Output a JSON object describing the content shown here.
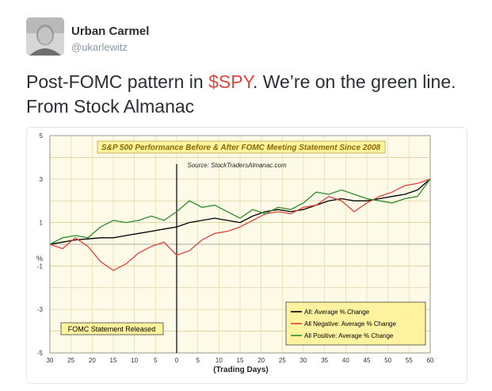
{
  "tweet": {
    "author_name": "Urban Carmel",
    "handle": "@ukarlewitz",
    "text_before": "Post-FOMC pattern in ",
    "cashtag": "$SPY",
    "text_after": ". We’re on the green line. From Stock Almanac"
  },
  "colors": {
    "cashtag": "#e0443a",
    "plot_bg": "#fdfbe8",
    "title_bg": "#fff3a0"
  },
  "chart_data": {
    "type": "line",
    "title": "S&P 500 Performance Before & After FOMC Meeting Statement Since 2008",
    "source": "Source: StockTradersAlmanac.com",
    "xlabel": "(Trading Days)",
    "ylabel": "%",
    "xlim": [
      -30,
      60
    ],
    "ylim": [
      -5,
      5
    ],
    "x_tick_labels": [
      "30",
      "25",
      "20",
      "15",
      "10",
      "5",
      "0",
      "5",
      "10",
      "15",
      "20",
      "25",
      "30",
      "35",
      "40",
      "45",
      "50",
      "55",
      "60"
    ],
    "y_ticks": [
      5,
      3,
      1,
      -1,
      -3,
      -5
    ],
    "y_tick_labels": [
      "5",
      "3",
      "1",
      "-1",
      "-3",
      "-5"
    ],
    "annotation": "FOMC Statement Released",
    "x": [
      -30,
      -27,
      -24,
      -21,
      -18,
      -15,
      -12,
      -9,
      -6,
      -3,
      0,
      3,
      6,
      9,
      12,
      15,
      18,
      21,
      24,
      27,
      30,
      33,
      36,
      39,
      42,
      45,
      48,
      51,
      54,
      57,
      60
    ],
    "series": [
      {
        "name": "All: Average % Change",
        "color": "#000000",
        "values": [
          0.0,
          0.1,
          0.2,
          0.25,
          0.3,
          0.3,
          0.4,
          0.5,
          0.6,
          0.7,
          0.8,
          1.0,
          1.1,
          1.2,
          1.1,
          1.0,
          1.3,
          1.5,
          1.6,
          1.5,
          1.6,
          1.8,
          2.0,
          2.1,
          2.0,
          2.0,
          2.1,
          2.2,
          2.3,
          2.5,
          3.0
        ]
      },
      {
        "name": "All Negative: Average % Change",
        "color": "#e0403c",
        "values": [
          0.0,
          -0.2,
          0.3,
          -0.1,
          -0.8,
          -1.2,
          -0.9,
          -0.4,
          -0.1,
          0.1,
          -0.5,
          -0.3,
          0.2,
          0.5,
          0.6,
          0.8,
          1.1,
          1.4,
          1.5,
          1.4,
          1.7,
          1.8,
          2.2,
          2.0,
          1.5,
          1.9,
          2.2,
          2.4,
          2.7,
          2.8,
          3.0
        ]
      },
      {
        "name": "All Positive: Average % Change",
        "color": "#2e8b2e",
        "values": [
          0.0,
          0.3,
          0.4,
          0.3,
          0.8,
          1.1,
          1.0,
          1.1,
          1.3,
          1.1,
          1.5,
          2.0,
          1.7,
          1.8,
          1.5,
          1.2,
          1.6,
          1.4,
          1.7,
          1.6,
          1.9,
          2.4,
          2.3,
          2.5,
          2.3,
          2.1,
          2.0,
          1.9,
          2.1,
          2.2,
          3.0
        ]
      }
    ],
    "legend_position": "bottom-right",
    "grid": true
  }
}
